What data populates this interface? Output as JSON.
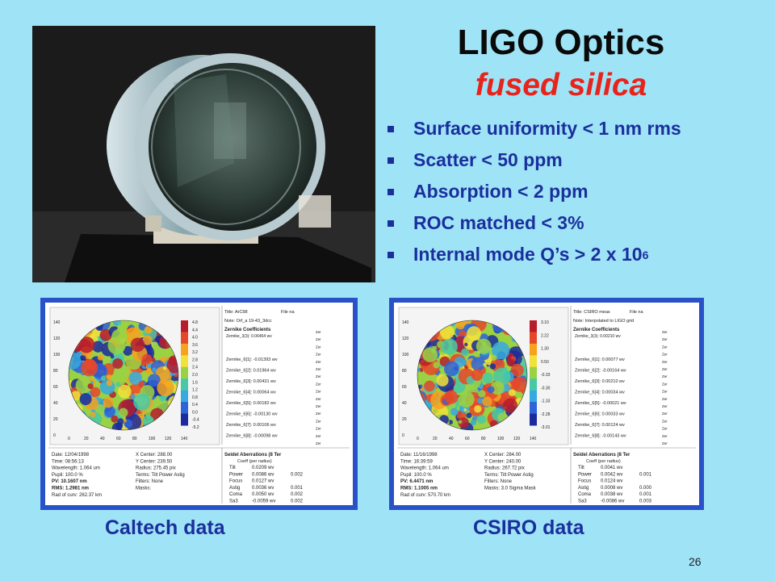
{
  "slide": {
    "title": "LIGO Optics",
    "subtitle": "fused silica",
    "bullets": [
      "Surface uniformity < 1 nm rms",
      "Scatter < 50 ppm",
      "Absorption <  2 ppm",
      "ROC matched < 3%",
      "Internal mode Q’s > 2 x 10"
    ],
    "bullet_superscript": "6",
    "slide_number": "26",
    "captions": {
      "left": "Caltech data",
      "right": "CSIRO data"
    }
  },
  "caltech": {
    "title": "Title: ArC98",
    "file": "File na",
    "note": "Note:  Orf_a 19-43_3dcc",
    "coeff_header": "Zernike Coefficients",
    "coeff_first": "Zernike_3(3): 0.06464 wv",
    "coefficients": [
      "Zernike_6[1]:  -0.01393 wv",
      "Zernike_6[2]:   0.01964 wv",
      "Zernike_6[3]:   0.00431 wv",
      "Zernike_6[4]:   0.00064 wv",
      "Zernike_6[5]:   0.00182 wv",
      "Zernike_6[6]:  -0.00130 wv",
      "Zernike_6[7]:   0.00106 wv",
      "Zernike_6[8]:  -0.00098 wv"
    ],
    "colorbar_labels": [
      "4.8",
      "4.4",
      "4.0",
      "3.6",
      "3.2",
      "2.8",
      "2.4",
      "2.0",
      "1.6",
      "1.2",
      "0.8",
      "0.4",
      "0.0",
      "-0.4",
      "-5.2"
    ],
    "y_ticks": [
      "140",
      "120",
      "100",
      "80",
      "60",
      "40",
      "20",
      "0"
    ],
    "x_ticks": [
      "0",
      "20",
      "40",
      "60",
      "80",
      "100",
      "120",
      "140"
    ],
    "info_left": [
      "Date:  12/04/1998",
      "Time:  08:56:13",
      "Wavelength:  1.064 um",
      "Pupil:  100.0 %",
      "PV:  10.1607 nm",
      "RMS:  1.2981 nm",
      "Rad of curv:  262.37 km"
    ],
    "info_mid": [
      "X Center:  288.00",
      "Y Center:  239.50",
      "Radius:  275.45 pix",
      "Terms:  Tilt Power Astig",
      "Filters:  None",
      "Masks:"
    ],
    "seidel_header": "Seidel Aberrations (8 Ter",
    "seidel_sub": "Coeff  (per radius)",
    "seidel": [
      [
        "Tilt",
        "0.0209 wv",
        ""
      ],
      [
        "Power",
        "0.0086 wv",
        "0.002"
      ],
      [
        "Focus",
        "0.0127 wv",
        ""
      ],
      [
        "Astig",
        "0.0036 wv",
        "0.001"
      ],
      [
        "Coma",
        "0.0050 wv",
        "0.002"
      ],
      [
        "Sa3",
        "-0.0059 wv",
        "0.002"
      ]
    ]
  },
  "csiro": {
    "title": "Title: CSIRO meas",
    "file": "File na",
    "note": "Note:  Interpolated to LIGO grid",
    "coeff_header": "Zernike Coefficients",
    "coeff_first": "Zernike_3(3): 0.00210 wv",
    "coefficients": [
      "Zernike_6[1]:  0.00077 wv",
      "Zernike_6[2]:  -0.00164 wv",
      "Zernike_6[3]:  0.00210 wv",
      "Zernike_6[4]:  0.00034 wv",
      "Zernike_6[5]:  -0.00021 wv",
      "Zernike_6[6]:  0.00033 wv",
      "Zernike_6[7]:  0.00124 wv",
      "Zernike_6[8]:  -0.00143 wv"
    ],
    "colorbar_labels": [
      "3.10",
      "2.22",
      "1.30",
      "0.50",
      "-0.33",
      "-0.30",
      "-1.33",
      "-2.28",
      "-3.01"
    ],
    "y_ticks": [
      "140",
      "120",
      "100",
      "80",
      "60",
      "40",
      "20",
      "0"
    ],
    "x_ticks": [
      "0",
      "20",
      "40",
      "60",
      "80",
      "100",
      "120",
      "140"
    ],
    "info_left": [
      "Date:  11/16/1998",
      "Time:  16:39:59",
      "Wavelength:  1.064 um",
      "Pupil:  100.0 %",
      "PV:  6.4471 nm",
      "RMS:  1.1005 nm",
      "Rad of curv:  570.70 km"
    ],
    "info_mid": [
      "X Center:  284.00",
      "Y Center:  240.00",
      "Radius:  267.72 pix",
      "Terms:  Tilt Power Astig",
      "Filters:  None",
      "Masks:  3.0 Sigma Mask"
    ],
    "seidel_header": "Seidel Aberrations (8 Ter",
    "seidel_sub": "Coeff  (per radius)",
    "seidel": [
      [
        "Tilt",
        "0.0041 wv",
        ""
      ],
      [
        "Power",
        "0.0042 wv",
        "0.001"
      ],
      [
        "Focus",
        "0.0124 wv",
        ""
      ],
      [
        "Astig",
        "0.0008 wv",
        "0.000"
      ],
      [
        "Coma",
        "0.0038 wv",
        "0.001"
      ],
      [
        "Sa3",
        "-0.0086 wv",
        "0.003"
      ]
    ]
  },
  "colors": {
    "background": "#9fe3f7",
    "bullet_text": "#1a2f9c",
    "subtitle": "#e8231c",
    "panel_border": "#2a52c8"
  }
}
